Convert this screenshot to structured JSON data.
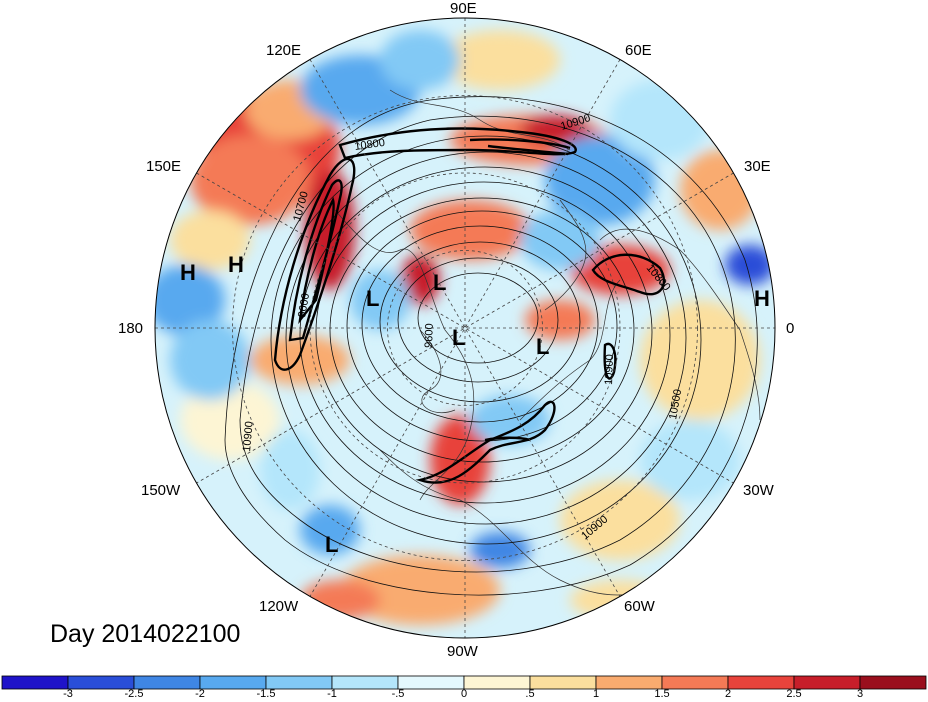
{
  "title": "Day 2014022100",
  "longitude_labels": {
    "top": "90E",
    "top_left": "120E",
    "top_right": "60E",
    "upper_left": "150E",
    "upper_right": "30E",
    "left": "180",
    "right": "0",
    "lower_left": "150W",
    "lower_right": "30W",
    "bottom_left": "120W",
    "bottom_right": "60W",
    "bottom": "90W"
  },
  "pressure_centers": [
    {
      "type": "H",
      "label": "H"
    },
    {
      "type": "H",
      "label": "H"
    },
    {
      "type": "H",
      "label": "H"
    },
    {
      "type": "L",
      "label": "L"
    },
    {
      "type": "L",
      "label": "L"
    },
    {
      "type": "L",
      "label": "L"
    },
    {
      "type": "L",
      "label": "L"
    },
    {
      "type": "L",
      "label": "L"
    }
  ],
  "contour_labels": [
    "10900",
    "10800",
    "10700",
    "9600",
    "9600",
    "10900",
    "10800",
    "10900",
    "10900",
    "10500",
    "10800",
    "10900"
  ],
  "colorbar": {
    "colors": [
      "#1f13c9",
      "#2a4ed8",
      "#3f86e4",
      "#58a9ef",
      "#82c9f5",
      "#b4e6fb",
      "#e4f8fd",
      "#fdf5d4",
      "#fbdf9e",
      "#f9ab6f",
      "#f47a56",
      "#e8433b",
      "#c71e2a",
      "#9a0f1d"
    ],
    "ticks": [
      "-3",
      "-2.5",
      "-2",
      "-1.5",
      "-1",
      "-.5",
      "0",
      ".5",
      "1",
      "1.5",
      "2",
      "2.5",
      "3"
    ]
  }
}
